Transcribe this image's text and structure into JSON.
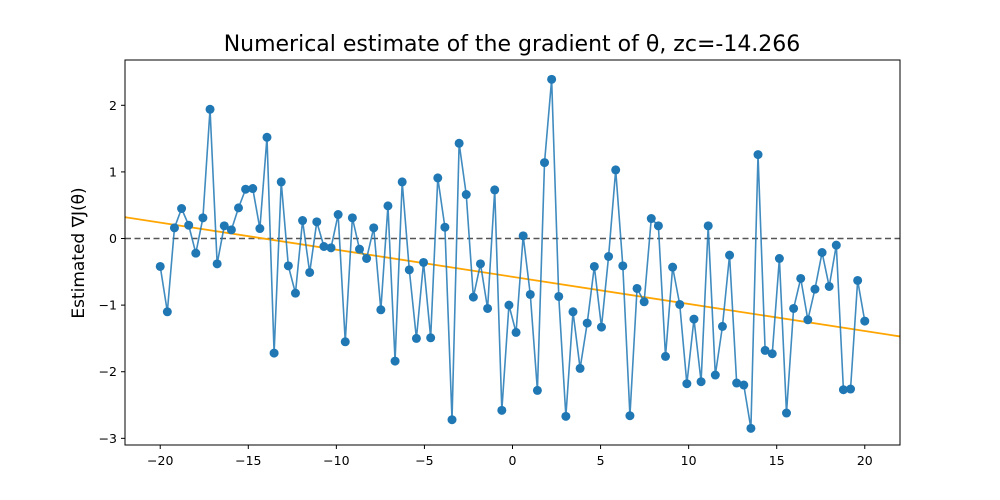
{
  "chart_data": {
    "type": "line",
    "title": "Numerical estimate of the gradient of θ, zc=-14.266",
    "xlabel": "",
    "ylabel": "Estimated ∇J(θ)",
    "xlim": [
      -22,
      22
    ],
    "ylim": [
      -3.1,
      2.68
    ],
    "xticks": [
      -20,
      -15,
      -10,
      -5,
      0,
      5,
      10,
      15,
      20
    ],
    "yticks": [
      -3,
      -2,
      -1,
      0,
      1,
      2
    ],
    "grid": false,
    "colors": {
      "series": "#1f77b4",
      "fit": "#ffa500",
      "zero": "#555555"
    },
    "series": [
      {
        "marker": "circle",
        "x": [
          -20,
          -19.596,
          -19.192,
          -18.788,
          -18.384,
          -17.98,
          -17.576,
          -17.172,
          -16.768,
          -16.364,
          -15.96,
          -15.556,
          -15.152,
          -14.747,
          -14.343,
          -13.939,
          -13.535,
          -13.131,
          -12.727,
          -12.323,
          -11.919,
          -11.515,
          -11.111,
          -10.707,
          -10.303,
          -9.899,
          -9.495,
          -9.091,
          -8.687,
          -8.283,
          -7.879,
          -7.475,
          -7.071,
          -6.667,
          -6.263,
          -5.859,
          -5.455,
          -5.051,
          -4.646,
          -4.242,
          -3.838,
          -3.434,
          -3.03,
          -2.626,
          -2.222,
          -1.818,
          -1.414,
          -1.01,
          -0.606,
          -0.202,
          0.202,
          0.606,
          1.01,
          1.414,
          1.818,
          2.222,
          2.626,
          3.03,
          3.434,
          3.838,
          4.242,
          4.646,
          5.051,
          5.455,
          5.859,
          6.263,
          6.667,
          7.071,
          7.475,
          7.879,
          8.283,
          8.687,
          9.091,
          9.495,
          9.899,
          10.303,
          10.707,
          11.111,
          11.515,
          11.919,
          12.323,
          12.727,
          13.131,
          13.535,
          13.939,
          14.343,
          14.747,
          15.152,
          15.556,
          15.96,
          16.364,
          16.768,
          17.172,
          17.576,
          17.98,
          18.384,
          18.788,
          19.192,
          19.596,
          20
        ],
        "y": [
          -0.42,
          -1.1,
          0.16,
          0.45,
          0.2,
          -0.22,
          0.31,
          1.94,
          -0.38,
          0.19,
          0.13,
          0.46,
          0.74,
          0.75,
          0.15,
          1.52,
          -1.72,
          0.85,
          -0.41,
          -0.82,
          0.27,
          -0.51,
          0.25,
          -0.12,
          -0.14,
          0.36,
          -1.55,
          0.31,
          -0.16,
          -0.3,
          0.16,
          -1.07,
          0.49,
          -1.84,
          0.85,
          -0.47,
          -1.5,
          -0.36,
          -1.49,
          0.91,
          0.17,
          -2.72,
          1.43,
          0.66,
          -0.88,
          -0.38,
          -1.05,
          0.73,
          -2.58,
          -1.0,
          -1.41,
          0.04,
          -0.84,
          -2.28,
          1.14,
          2.39,
          -0.87,
          -2.67,
          -1.1,
          -1.95,
          -1.27,
          -0.42,
          -1.33,
          -0.27,
          1.03,
          -0.41,
          -2.66,
          -0.75,
          -0.95,
          0.3,
          0.19,
          -1.77,
          -0.43,
          -0.99,
          -2.18,
          -1.21,
          -2.15,
          0.19,
          -2.05,
          -1.32,
          -0.25,
          -2.17,
          -2.2,
          -2.85,
          1.26,
          -1.68,
          -1.73,
          -0.3,
          -2.62,
          -1.05,
          -0.6,
          -1.22,
          -0.76,
          -0.21,
          -0.72,
          -0.1,
          -2.27,
          -2.26,
          -0.63,
          -1.24
        ]
      },
      {
        "style": "fit-line",
        "x": [
          -22,
          22
        ],
        "y": [
          0.32,
          -1.47
        ]
      },
      {
        "style": "dashed-zero",
        "x": [
          -22,
          22
        ],
        "y": [
          0,
          0
        ]
      }
    ]
  }
}
